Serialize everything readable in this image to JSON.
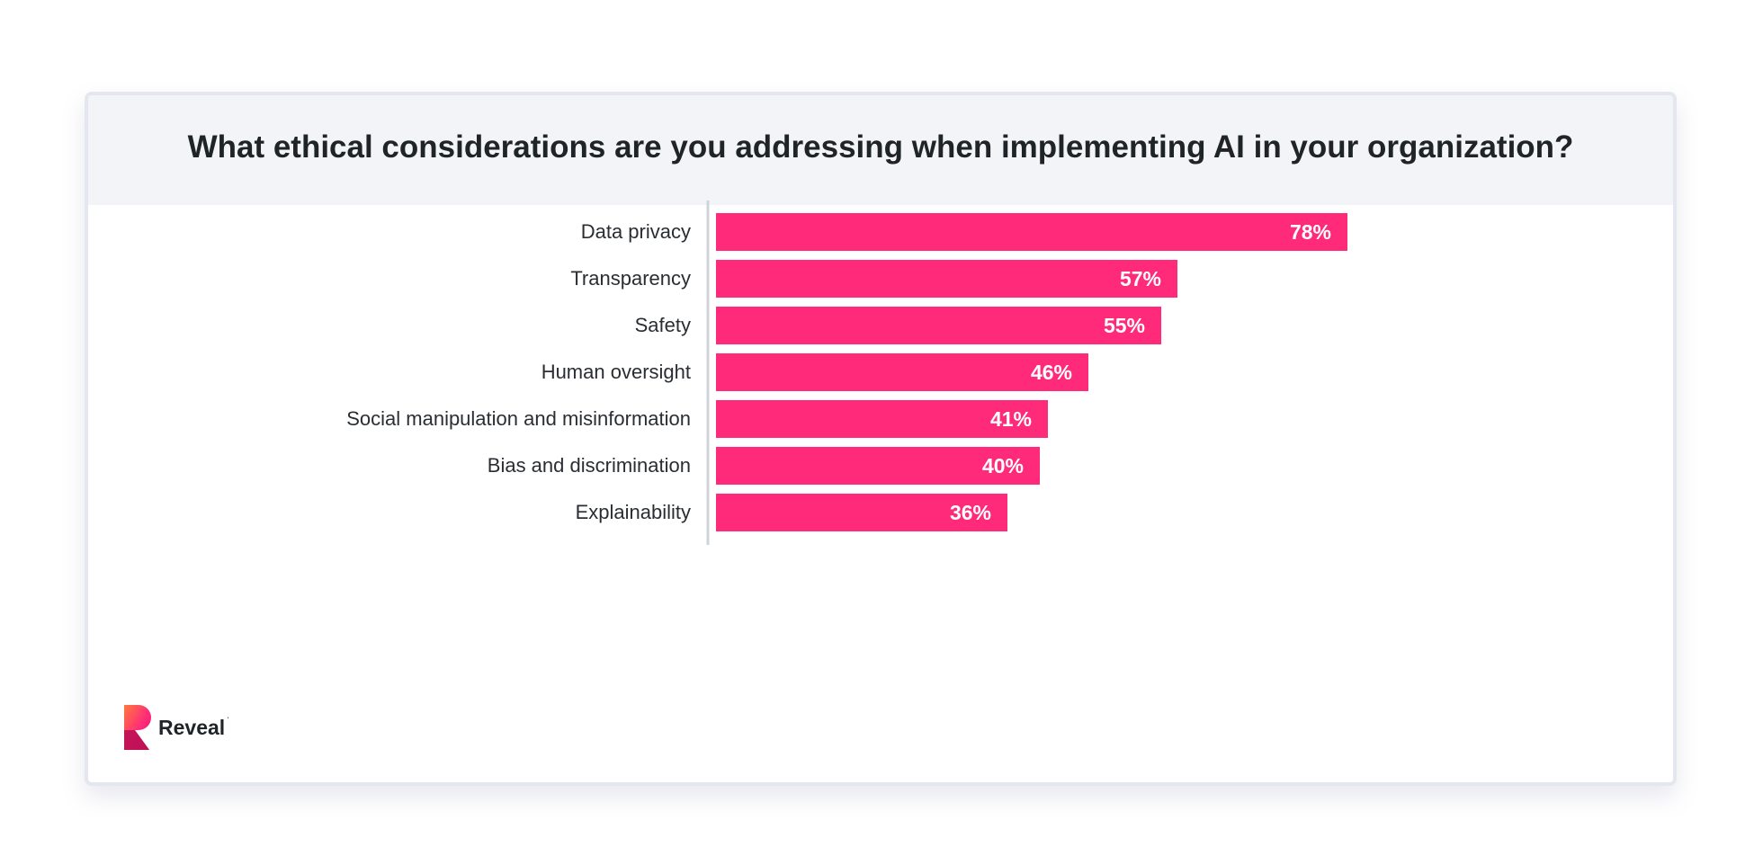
{
  "title": "What ethical considerations are you addressing when implementing AI in your organization?",
  "brand": {
    "name": "Reveal",
    "mark": "'"
  },
  "colors": {
    "bar": "#ff2a7a",
    "axis": "#d0d3da",
    "label": "#2a2e33",
    "value_label": "#ffffff"
  },
  "chart_data": {
    "type": "bar",
    "orientation": "horizontal",
    "categories": [
      "Data privacy",
      "Transparency",
      "Safety",
      "Human oversight",
      "Social manipulation and misinformation",
      "Bias and discrimination",
      "Explainability"
    ],
    "values": [
      78,
      57,
      55,
      46,
      41,
      40,
      36
    ],
    "value_labels": [
      "78%",
      "57%",
      "55%",
      "46%",
      "41%",
      "40%",
      "36%"
    ],
    "unit": "%",
    "xlim": [
      0,
      100
    ],
    "grid": false,
    "legend": "none"
  }
}
